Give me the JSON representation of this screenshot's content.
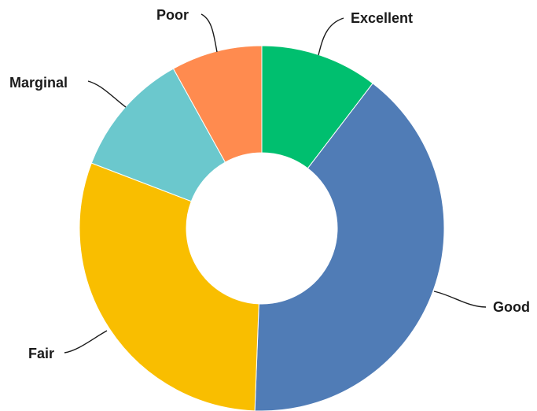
{
  "chart_data": {
    "type": "pie",
    "donut": true,
    "title": "",
    "start_angle_deg": 0,
    "direction": "clockwise",
    "slices": [
      {
        "label": "Excellent",
        "value": 10.2,
        "color": "#00BF6F"
      },
      {
        "label": "Good",
        "value": 39.4,
        "color": "#507CB6"
      },
      {
        "label": "Fair",
        "value": 29.6,
        "color": "#F9BE00"
      },
      {
        "label": "Marginal",
        "value": 10.9,
        "color": "#6BC8CD"
      },
      {
        "label": "Poor",
        "value": 7.9,
        "color": "#FF8B4F"
      }
    ],
    "legend": "none",
    "data_labels": "outside-with-leaders"
  }
}
